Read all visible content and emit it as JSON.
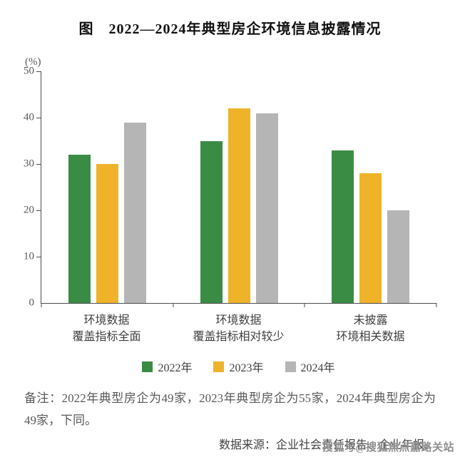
{
  "title": "图　2022—2024年典型房企环境信息披露情况",
  "chart_data": {
    "type": "bar",
    "title": "2022—2024年典型房企环境信息披露情况",
    "unit_label": "(%)",
    "categories": [
      {
        "line1": "环境数据",
        "line2": "覆盖指标全面"
      },
      {
        "line1": "环境数据",
        "line2": "覆盖指标相对较少"
      },
      {
        "line1": "未披露",
        "line2": "环境相关数据"
      }
    ],
    "series": [
      {
        "name": "2022年",
        "color": "#3a8c45",
        "values": [
          32,
          35,
          33
        ]
      },
      {
        "name": "2023年",
        "color": "#efb32a",
        "values": [
          30,
          42,
          28
        ]
      },
      {
        "name": "2024年",
        "color": "#b5b5b5",
        "values": [
          39,
          41,
          20
        ]
      }
    ],
    "ylim": [
      0,
      50
    ],
    "yticks": [
      0,
      10,
      20,
      30,
      40,
      50
    ],
    "grid": false,
    "legend_position": "bottom"
  },
  "note": "备注：2022年典型房企为49家，2023年典型房企为55家，2024年典型房企为49家，下同。",
  "source": "数据来源：企业社会责任报告、企业年报。",
  "watermark": "搜狐号@搜狐焦点嘉路关站"
}
